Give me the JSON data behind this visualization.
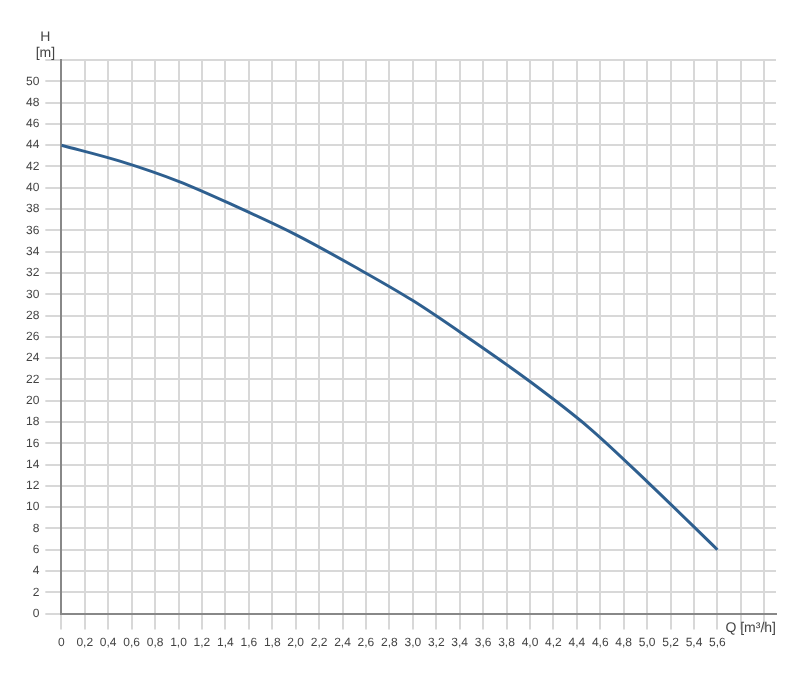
{
  "chart_data": {
    "type": "line",
    "xlabel": "Q [m³/h]",
    "ylabel": "H [m]",
    "series": [
      {
        "color": "#2e5f8f",
        "x": [
          0,
          0.5,
          1,
          1.5,
          2,
          2.5,
          3,
          3.5,
          4,
          4.5,
          5,
          5.6
        ],
        "values": [
          44,
          42.5,
          40.6,
          38.2,
          35.6,
          32.6,
          29.4,
          25.7,
          21.8,
          17.5,
          12.4,
          6
        ]
      }
    ],
    "xlim": [
      0,
      6.1
    ],
    "xticks": [
      0,
      {
        "value": 0.2,
        "label": "0,2"
      },
      {
        "value": 0.4,
        "label": "0,4"
      },
      {
        "value": 0.6,
        "label": "0,6"
      },
      {
        "value": 0.8,
        "label": "0,8"
      },
      {
        "value": 1,
        "label": "1,0"
      },
      {
        "value": 1.2,
        "label": "1,2"
      },
      {
        "value": 1.4,
        "label": "1,4"
      },
      {
        "value": 1.6,
        "label": "1,6"
      },
      {
        "value": 1.8,
        "label": "1,8"
      },
      {
        "value": 2,
        "label": "2,0"
      },
      {
        "value": 2.2,
        "label": "2,2"
      },
      {
        "value": 2.4,
        "label": "2,4"
      },
      {
        "value": 2.6,
        "label": "2,6"
      },
      {
        "value": 2.8,
        "label": "2,8"
      },
      {
        "value": 3,
        "label": "3,0"
      },
      {
        "value": 3.2,
        "label": "3,2"
      },
      {
        "value": 3.4,
        "label": "3,4"
      },
      {
        "value": 3.6,
        "label": "3,6"
      },
      {
        "value": 3.8,
        "label": "3,8"
      },
      {
        "value": 4,
        "label": "4,0"
      },
      {
        "value": 4.2,
        "label": "4,2"
      },
      {
        "value": 4.4,
        "label": "4,4"
      },
      {
        "value": 4.6,
        "label": "4,6"
      },
      {
        "value": 4.8,
        "label": "4,8"
      },
      {
        "value": 5,
        "label": "5,0"
      },
      {
        "value": 5.2,
        "label": "5,2"
      },
      {
        "value": 5.4,
        "label": "5,4"
      },
      {
        "value": 5.6,
        "label": "5,6"
      },
      {
        "value": 5.8,
        "label": null
      },
      {
        "value": 6,
        "label": null
      }
    ],
    "ylim": [
      0,
      52
    ],
    "yticks": [
      0,
      2,
      4,
      6,
      8,
      10,
      12,
      14,
      16,
      18,
      20,
      22,
      24,
      26,
      28,
      30,
      32,
      34,
      36,
      38,
      40,
      42,
      44,
      46,
      48,
      50,
      {
        "value": 52,
        "label": null
      }
    ],
    "grid": true,
    "marker": "none",
    "line_style": "solid"
  }
}
